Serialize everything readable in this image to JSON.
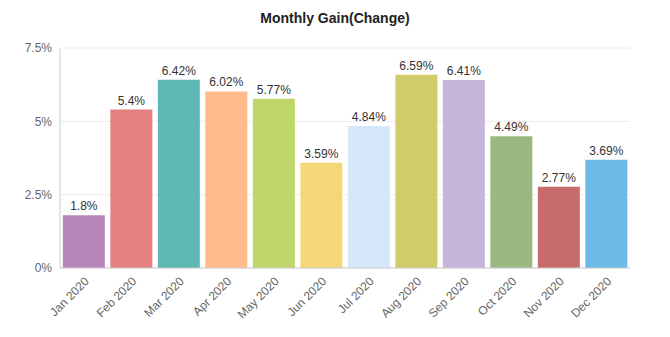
{
  "chart_data": {
    "type": "bar",
    "title": "Monthly Gain(Change)",
    "categories": [
      "Jan 2020",
      "Feb 2020",
      "Mar 2020",
      "Apr 2020",
      "May 2020",
      "Jun 2020",
      "Jul 2020",
      "Aug 2020",
      "Sep 2020",
      "Oct 2020",
      "Nov 2020",
      "Dec 2020"
    ],
    "values": [
      1.8,
      5.4,
      6.42,
      6.02,
      5.77,
      3.59,
      4.84,
      6.59,
      6.41,
      4.49,
      2.77,
      3.69
    ],
    "value_labels": [
      "1.8%",
      "5.4%",
      "6.42%",
      "6.02%",
      "5.77%",
      "3.59%",
      "4.84%",
      "6.59%",
      "6.41%",
      "4.49%",
      "2.77%",
      "3.69%"
    ],
    "colors": [
      "#b784b7",
      "#e48080",
      "#5bb8b3",
      "#ffbb8c",
      "#bfd66b",
      "#f5d77a",
      "#d4e8fa",
      "#d1cc6a",
      "#c4b5d9",
      "#9bb881",
      "#c86b6b",
      "#6bbbe6"
    ],
    "ylim": [
      0,
      7.5
    ],
    "yticks": [
      {
        "value": 0,
        "label": "0%"
      },
      {
        "value": 2.5,
        "label": "2.5%"
      },
      {
        "value": 5,
        "label": "5%"
      },
      {
        "value": 7.5,
        "label": "7.5%"
      }
    ],
    "grid": true,
    "data_labels": true
  }
}
